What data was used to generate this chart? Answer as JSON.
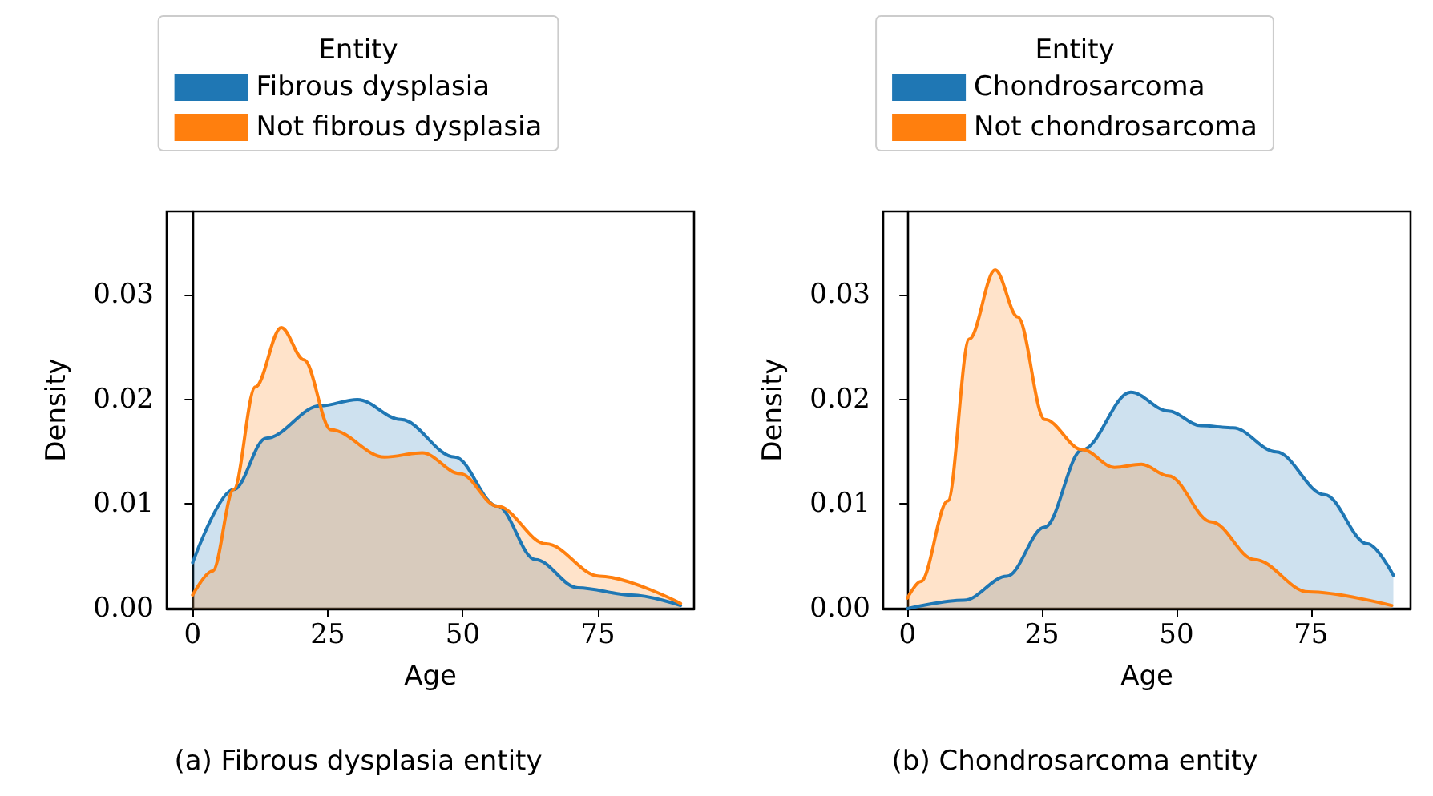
{
  "chart_data": [
    {
      "type": "area",
      "title": "(a) Fibrous dysplasia entity",
      "xlabel": "Age",
      "ylabel": "Density",
      "legend_title": "Entity",
      "legend": "top",
      "xlim": [
        -4.8,
        92.8
      ],
      "xticks": [
        0,
        25,
        50,
        75
      ],
      "ylim": [
        0,
        0.038
      ],
      "yticks": [
        {
          "value": 0,
          "label": "0.00"
        },
        0.01,
        0.02,
        0.03
      ],
      "series": [
        {
          "name": "Fibrous dysplasia",
          "color": "#1f77b4",
          "x": [
            0,
            7.6,
            13.6,
            23.6,
            30.5,
            38.5,
            48.5,
            56.4,
            63.4,
            71.3,
            81.3,
            90.3
          ],
          "values": [
            0.0044,
            0.0114,
            0.0163,
            0.0194,
            0.02,
            0.0181,
            0.0145,
            0.0098,
            0.0047,
            0.002,
            0.0013,
            0.0003
          ]
        },
        {
          "name": "Not fibrous dysplasia",
          "color": "#ff7f0e",
          "x": [
            0,
            3.7,
            7.6,
            11.6,
            16.4,
            20.6,
            25.6,
            35.5,
            42.5,
            49.5,
            56.4,
            65.4,
            75.3,
            90.3
          ],
          "values": [
            0.0013,
            0.0036,
            0.0114,
            0.0212,
            0.0269,
            0.0238,
            0.0171,
            0.0145,
            0.0149,
            0.0129,
            0.0098,
            0.0062,
            0.0031,
            0.0005
          ]
        }
      ]
    },
    {
      "type": "area",
      "title": "(b) Chondrosarcoma entity",
      "xlabel": "Age",
      "ylabel": "Density",
      "legend_title": "Entity",
      "legend": "top",
      "xlim": [
        -4.5,
        93.5
      ],
      "xticks": [
        0,
        25,
        50,
        75
      ],
      "ylim": [
        0,
        0.038
      ],
      "yticks": [
        {
          "value": 0,
          "label": "0.00"
        },
        0.01,
        0.02,
        0.03
      ],
      "series": [
        {
          "name": "Chondrosarcoma",
          "color": "#1f77b4",
          "x": [
            0,
            10.5,
            18.5,
            25.5,
            32.5,
            41.5,
            48.5,
            54.5,
            60.5,
            68.5,
            77.5,
            85.5,
            90.3
          ],
          "values": [
            0,
            0.0008,
            0.0031,
            0.0078,
            0.0152,
            0.0207,
            0.0189,
            0.0175,
            0.0173,
            0.015,
            0.0109,
            0.0062,
            0.0032
          ]
        },
        {
          "name": "Not chondrosarcoma",
          "color": "#ff7f0e",
          "x": [
            0,
            2.5,
            7.5,
            11.5,
            16.3,
            20.5,
            25.5,
            32.5,
            38.5,
            43.5,
            48.5,
            56.5,
            64.5,
            74.5,
            90
          ],
          "values": [
            0.001,
            0.0026,
            0.0103,
            0.0258,
            0.0324,
            0.0279,
            0.0181,
            0.0152,
            0.0135,
            0.0138,
            0.0127,
            0.0083,
            0.0047,
            0.0016,
            0.0003
          ]
        }
      ]
    }
  ]
}
